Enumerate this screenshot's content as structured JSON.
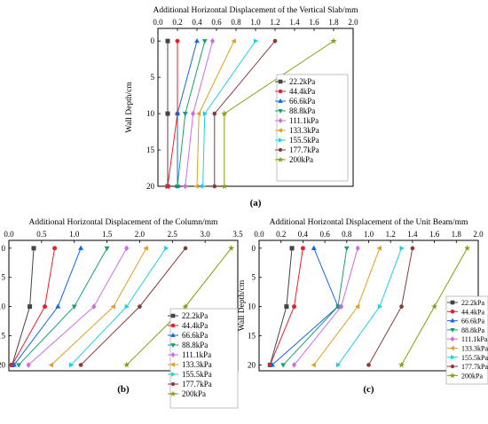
{
  "series_names": [
    "22.2kPa",
    "44.4kPa",
    "66.6kPa",
    "88.8kPa",
    "111.1kPa",
    "133.3kPa",
    "155.5kPa",
    "177.7kPa",
    "200kPa"
  ],
  "series_colors": [
    "#444444",
    "#e8202a",
    "#1565e6",
    "#17a06f",
    "#cf6ce3",
    "#e0a020",
    "#1fd0e0",
    "#8b3a3a",
    "#8a9a10"
  ],
  "series_markers": [
    "square",
    "circle",
    "triangle-up",
    "triangle-down",
    "diamond",
    "triangle-left",
    "triangle-right",
    "hexagon",
    "star"
  ],
  "chart_data": [
    {
      "id": "a",
      "type": "line",
      "title": "Additional Horizontal Displacement of the Vertical Slab/mm",
      "ylabel": "Wall Depth/cm",
      "panel_label": "(a)",
      "xlim": [
        0,
        2.0
      ],
      "xticks": [
        "0.0",
        "0.2",
        "0.4",
        "0.6",
        "0.8",
        "1.0",
        "1.2",
        "1.4",
        "1.6",
        "1.8",
        "2.0"
      ],
      "ylim": [
        0,
        20
      ],
      "yticks": [
        "0",
        "5",
        "10",
        "15",
        "20"
      ],
      "y": [
        0,
        10,
        20
      ],
      "series": [
        {
          "values": [
            0.1,
            0.1,
            0.1
          ]
        },
        {
          "values": [
            0.2,
            0.2,
            0.1
          ]
        },
        {
          "values": [
            0.4,
            0.2,
            0.2
          ]
        },
        {
          "values": [
            0.48,
            0.28,
            0.2
          ]
        },
        {
          "values": [
            0.56,
            0.36,
            0.28
          ]
        },
        {
          "values": [
            0.78,
            0.42,
            0.4
          ]
        },
        {
          "values": [
            1.0,
            0.48,
            0.46
          ]
        },
        {
          "values": [
            1.2,
            0.58,
            0.58
          ]
        },
        {
          "values": [
            1.8,
            0.68,
            0.68
          ]
        }
      ]
    },
    {
      "id": "b",
      "type": "line",
      "title": "Additional Horizontal Displacement of the Column/mm",
      "ylabel": "Wall Depth/cm",
      "panel_label": "(b)",
      "xlim": [
        0,
        3.5
      ],
      "xticks": [
        "0.0",
        "0.5",
        "1.0",
        "1.5",
        "2.0",
        "2.5",
        "3.0",
        "3.5"
      ],
      "ylim": [
        0,
        21
      ],
      "yticks": [
        "0",
        "5",
        "10",
        "15",
        "20"
      ],
      "y": [
        0,
        10,
        20
      ],
      "series": [
        {
          "values": [
            0.38,
            0.32,
            0.05
          ]
        },
        {
          "values": [
            0.7,
            0.55,
            0.05
          ]
        },
        {
          "values": [
            1.1,
            0.75,
            0.08
          ]
        },
        {
          "values": [
            1.5,
            1.0,
            0.15
          ]
        },
        {
          "values": [
            1.8,
            1.3,
            0.3
          ]
        },
        {
          "values": [
            2.1,
            1.6,
            0.65
          ]
        },
        {
          "values": [
            2.4,
            1.8,
            0.95
          ]
        },
        {
          "values": [
            2.7,
            2.0,
            1.1
          ]
        },
        {
          "values": [
            3.4,
            2.7,
            1.8
          ]
        }
      ]
    },
    {
      "id": "c",
      "type": "line",
      "title": "Additional Horizontal Displacement of the Unit Beam/mm",
      "ylabel": "Wall Depth/cm",
      "panel_label": "(c)",
      "xlim": [
        0,
        2.0
      ],
      "xticks": [
        "0.0",
        "0.2",
        "0.4",
        "0.6",
        "0.8",
        "1.0",
        "1.2",
        "1.4",
        "1.6",
        "1.8",
        "2.0"
      ],
      "ylim": [
        0,
        21
      ],
      "yticks": [
        "0",
        "5",
        "10",
        "15",
        "20"
      ],
      "y": [
        0,
        10,
        20
      ],
      "series": [
        {
          "values": [
            0.3,
            0.25,
            0.1
          ]
        },
        {
          "values": [
            0.4,
            0.32,
            0.1
          ]
        },
        {
          "values": [
            0.5,
            0.72,
            0.12
          ]
        },
        {
          "values": [
            0.8,
            0.72,
            0.22
          ]
        },
        {
          "values": [
            0.9,
            0.75,
            0.32
          ]
        },
        {
          "values": [
            1.1,
            0.9,
            0.5
          ]
        },
        {
          "values": [
            1.3,
            1.1,
            0.72
          ]
        },
        {
          "values": [
            1.4,
            1.3,
            1.0
          ]
        },
        {
          "values": [
            1.9,
            1.6,
            1.3
          ]
        }
      ]
    }
  ]
}
